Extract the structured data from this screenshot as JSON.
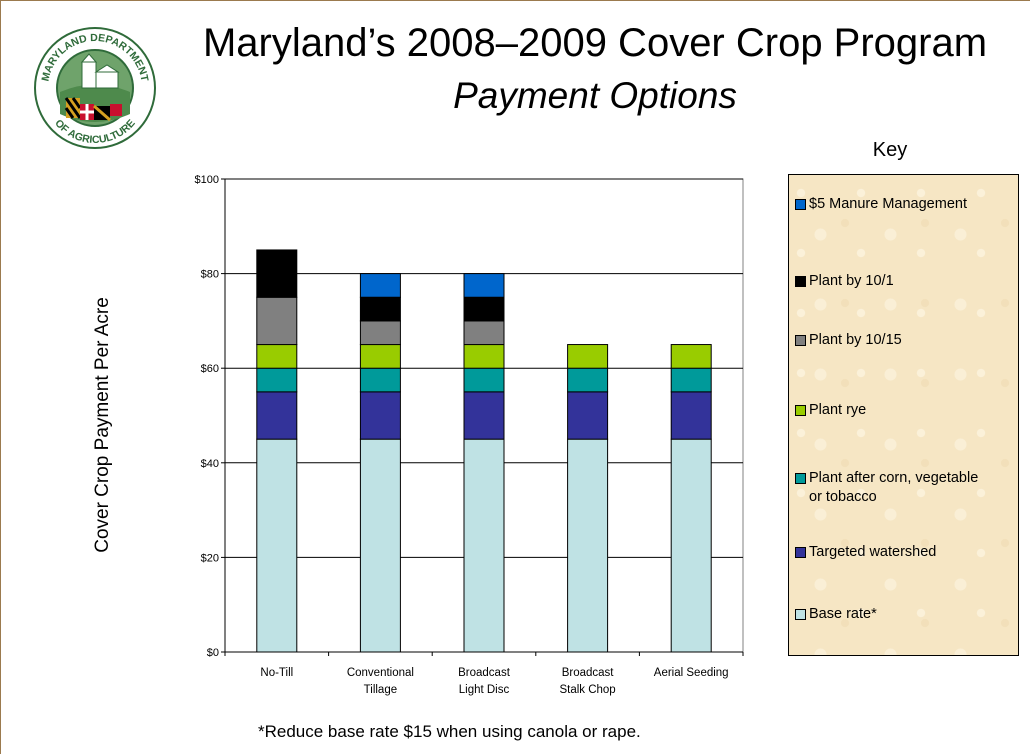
{
  "header": {
    "title": "Maryland’s 2008–2009 Cover Crop Program",
    "subtitle": "Payment Options"
  },
  "logo": {
    "text_top": "MARYLAND DEPARTMENT",
    "text_bottom": "OF AGRICULTURE"
  },
  "footnote": "*Reduce base rate $15 when using canola or rape.",
  "legend_title": "Key",
  "chart_data": {
    "type": "bar",
    "stacked": true,
    "ylabel": "Cover Crop Payment Per Acre",
    "xlabel": "",
    "ylim": [
      0,
      100
    ],
    "yticks": [
      0,
      20,
      40,
      60,
      80,
      100
    ],
    "ytick_labels": [
      "$0",
      "$20",
      "$40",
      "$60",
      "$80",
      "$100"
    ],
    "grid": "horizontal",
    "legend_placement": "right",
    "categories": [
      "No-Till",
      "Conventional\nTillage",
      "Broadcast\nLight Disc",
      "Broadcast\nStalk Chop",
      "Aerial Seeding"
    ],
    "series": [
      {
        "name": "Base rate*",
        "color": "#bfe2e4",
        "values": [
          45,
          45,
          45,
          45,
          45
        ]
      },
      {
        "name": "Targeted watershed",
        "color": "#33339a",
        "values": [
          10,
          10,
          10,
          10,
          10
        ]
      },
      {
        "name": "Plant after corn, vegetable\nor tobacco",
        "color": "#009a9a",
        "values": [
          5,
          5,
          5,
          5,
          5
        ]
      },
      {
        "name": "Plant rye",
        "color": "#99cc00",
        "values": [
          5,
          5,
          5,
          5,
          5
        ]
      },
      {
        "name": "Plant by 10/15",
        "color": "#808080",
        "values": [
          10,
          5,
          5,
          0,
          0
        ]
      },
      {
        "name": "Plant by 10/1",
        "color": "#000000",
        "values": [
          10,
          5,
          5,
          0,
          0
        ]
      },
      {
        "name": "$5 Manure Management",
        "color": "#0066cc",
        "values": [
          0,
          5,
          5,
          0,
          0
        ]
      }
    ]
  }
}
